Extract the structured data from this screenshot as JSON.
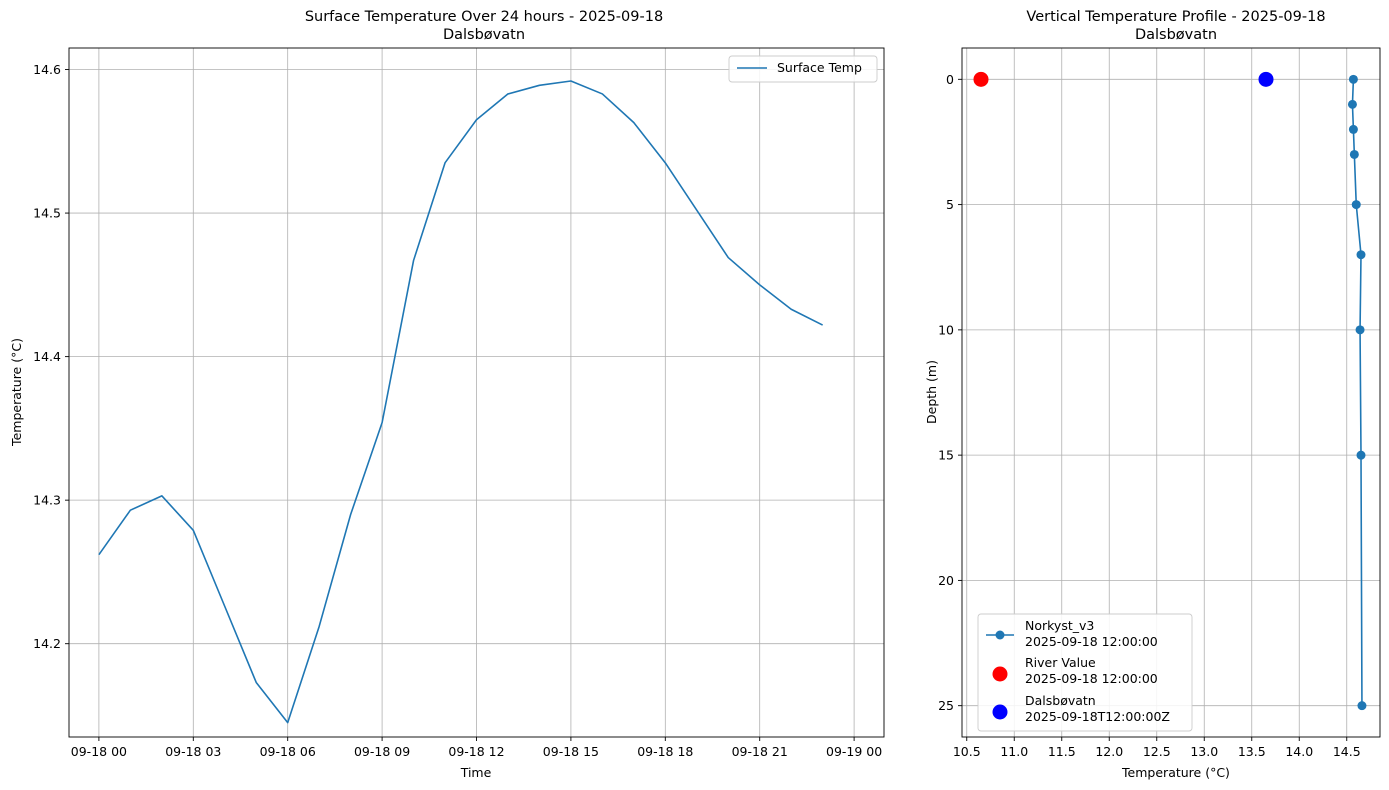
{
  "chart_data": [
    {
      "type": "line",
      "title": "Surface Temperature Over 24 hours - 2025-09-18",
      "subtitle": "Dalsbøvatn",
      "xlabel": "Time",
      "ylabel": "Temperature (°C)",
      "xlim": [
        -0.95,
        24.95
      ],
      "ylim": [
        14.135,
        14.615
      ],
      "grid": true,
      "legend": "top-right",
      "xticks": [
        {
          "v": 0,
          "label": "09-18 00"
        },
        {
          "v": 3,
          "label": "09-18 03"
        },
        {
          "v": 6,
          "label": "09-18 06"
        },
        {
          "v": 9,
          "label": "09-18 09"
        },
        {
          "v": 12,
          "label": "09-18 12"
        },
        {
          "v": 15,
          "label": "09-18 15"
        },
        {
          "v": 18,
          "label": "09-18 18"
        },
        {
          "v": 21,
          "label": "09-18 21"
        },
        {
          "v": 24,
          "label": "09-19 00"
        }
      ],
      "yticks": [
        {
          "v": 14.2,
          "label": "14.2"
        },
        {
          "v": 14.3,
          "label": "14.3"
        },
        {
          "v": 14.4,
          "label": "14.4"
        },
        {
          "v": 14.5,
          "label": "14.5"
        },
        {
          "v": 14.6,
          "label": "14.6"
        }
      ],
      "series": [
        {
          "name": "Surface Temp",
          "color": "#1f77b4",
          "x": [
            0,
            1,
            2,
            3,
            4,
            5,
            6,
            7,
            8,
            9,
            10,
            11,
            12,
            13,
            14,
            15,
            16,
            17,
            18,
            19,
            20,
            21,
            22,
            23
          ],
          "y": [
            14.262,
            14.293,
            14.303,
            14.279,
            14.226,
            14.173,
            14.145,
            14.212,
            14.29,
            14.354,
            14.467,
            14.535,
            14.565,
            14.583,
            14.589,
            14.592,
            14.583,
            14.563,
            14.535,
            14.502,
            14.469,
            14.45,
            14.433,
            14.422
          ]
        }
      ]
    },
    {
      "type": "line",
      "title": "Vertical Temperature Profile - 2025-09-18",
      "subtitle": "Dalsbøvatn",
      "xlabel": "Temperature (°C)",
      "ylabel": "Depth (m)",
      "xlim": [
        10.45,
        14.85
      ],
      "ylim": [
        26.25,
        -1.25
      ],
      "y_inverted": true,
      "grid": true,
      "legend": "bottom-left",
      "xticks": [
        {
          "v": 10.5,
          "label": "10.5"
        },
        {
          "v": 11.0,
          "label": "11.0"
        },
        {
          "v": 11.5,
          "label": "11.5"
        },
        {
          "v": 12.0,
          "label": "12.0"
        },
        {
          "v": 12.5,
          "label": "12.5"
        },
        {
          "v": 13.0,
          "label": "13.0"
        },
        {
          "v": 13.5,
          "label": "13.5"
        },
        {
          "v": 14.0,
          "label": "14.0"
        },
        {
          "v": 14.5,
          "label": "14.5"
        }
      ],
      "yticks": [
        {
          "v": 0,
          "label": "0"
        },
        {
          "v": 5,
          "label": "5"
        },
        {
          "v": 10,
          "label": "10"
        },
        {
          "v": 15,
          "label": "15"
        },
        {
          "v": 20,
          "label": "20"
        },
        {
          "v": 25,
          "label": "25"
        }
      ],
      "series": [
        {
          "name": "Norkyst_v3",
          "name_line2": "2025-09-18 12:00:00",
          "color": "#1f77b4",
          "marker": "line+dot",
          "x": [
            14.57,
            14.56,
            14.57,
            14.58,
            14.6,
            14.65,
            14.64,
            14.65,
            14.66
          ],
          "y": [
            0,
            1,
            2,
            3,
            5,
            7,
            10,
            15,
            25
          ]
        },
        {
          "name": "River Value",
          "name_line2": "2025-09-18 12:00:00",
          "color": "#ff0000",
          "marker": "big-dot",
          "x": [
            10.65
          ],
          "y": [
            0
          ]
        },
        {
          "name": "Dalsbøvatn",
          "name_line2": "2025-09-18T12:00:00Z",
          "color": "#0000ff",
          "marker": "big-dot",
          "x": [
            13.65
          ],
          "y": [
            0
          ]
        }
      ]
    }
  ]
}
